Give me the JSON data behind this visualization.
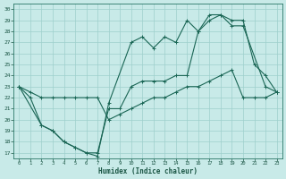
{
  "background_color": "#c8eae8",
  "grid_color": "#9ecfcc",
  "line_color": "#1a6655",
  "xlabel": "Humidex (Indice chaleur)",
  "xlim_min": -0.5,
  "xlim_max": 23.5,
  "ylim_min": 16.5,
  "ylim_max": 30.5,
  "yticks": [
    17,
    18,
    19,
    20,
    21,
    22,
    23,
    24,
    25,
    26,
    27,
    28,
    29,
    30
  ],
  "xticks": [
    0,
    1,
    2,
    3,
    4,
    5,
    6,
    7,
    8,
    9,
    10,
    11,
    12,
    13,
    14,
    15,
    16,
    17,
    18,
    19,
    20,
    21,
    22,
    23
  ],
  "line1_x": [
    0,
    1,
    2,
    3,
    4,
    5,
    6,
    7,
    8,
    9,
    10,
    11,
    12,
    13,
    14,
    15,
    16,
    17,
    18,
    19,
    20,
    21,
    22,
    23
  ],
  "line1_y": [
    23,
    22,
    19.5,
    19,
    18,
    17.5,
    17,
    17,
    21,
    21,
    23,
    23.5,
    23.5,
    23.5,
    24,
    24,
    28,
    29,
    29.5,
    29,
    29,
    25,
    24,
    22.5
  ],
  "line2_x": [
    0,
    1,
    2,
    3,
    4,
    5,
    6,
    7,
    8,
    9,
    10,
    11,
    12,
    13,
    14,
    15,
    16,
    17,
    18,
    19,
    20,
    21,
    22,
    23
  ],
  "line2_y": [
    23,
    22.5,
    22,
    22,
    22,
    22,
    22,
    22,
    20,
    20.5,
    21,
    21.5,
    22,
    22,
    22.5,
    23,
    23,
    23.5,
    24,
    24.5,
    22,
    22,
    22,
    22.5
  ],
  "line3_x": [
    0,
    2,
    3,
    4,
    5,
    6,
    7,
    8,
    10,
    11,
    12,
    13,
    14,
    15,
    16,
    17,
    18,
    19,
    20,
    22,
    23
  ],
  "line3_y": [
    23,
    19.5,
    19,
    18,
    17.5,
    17,
    16.7,
    21.5,
    27,
    27.5,
    26.5,
    27.5,
    27,
    29,
    28,
    29.5,
    29.5,
    28.5,
    28.5,
    23,
    22.5
  ]
}
